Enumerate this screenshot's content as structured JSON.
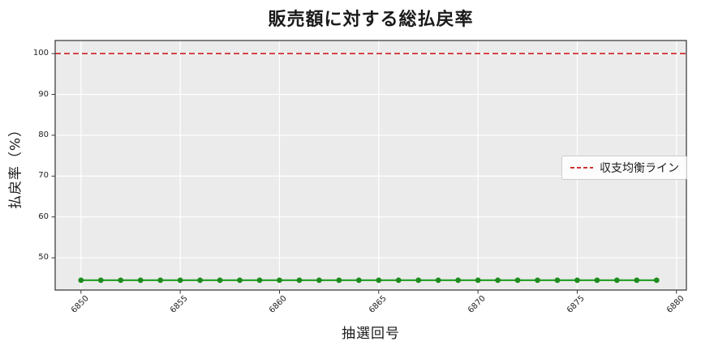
{
  "title": "販売額に対する総払戻率",
  "axes": {
    "xlabel": "抽選回号",
    "ylabel": "払戻率（%）"
  },
  "legend": {
    "items": [
      {
        "label": "収支均衡ライン",
        "color": "#d03030",
        "style": "dashed"
      }
    ]
  },
  "colors": {
    "plot_bg": "#ebebeb",
    "grid": "#ffffff",
    "spine": "#333333",
    "tick": "#333333",
    "series_line": "#2ca02c",
    "series_marker": "#1e8b1e",
    "breakeven": "#d03030"
  },
  "chart_data": {
    "type": "line",
    "title": "販売額に対する総払戻率",
    "xlabel": "抽選回号",
    "ylabel": "払戻率（%）",
    "x": [
      6850,
      6851,
      6852,
      6853,
      6854,
      6855,
      6856,
      6857,
      6858,
      6859,
      6860,
      6861,
      6862,
      6863,
      6864,
      6865,
      6866,
      6867,
      6868,
      6869,
      6870,
      6871,
      6872,
      6873,
      6874,
      6875,
      6876,
      6877,
      6878,
      6879
    ],
    "series": [
      {
        "name": "総払戻率",
        "color": "#2ca02c",
        "marker": "circle",
        "values": [
          44.5,
          44.5,
          44.5,
          44.5,
          44.5,
          44.5,
          44.5,
          44.5,
          44.5,
          44.5,
          44.5,
          44.5,
          44.5,
          44.5,
          44.5,
          44.5,
          44.5,
          44.5,
          44.5,
          44.5,
          44.5,
          44.5,
          44.5,
          44.5,
          44.5,
          44.5,
          44.5,
          44.5,
          44.5,
          44.5
        ]
      }
    ],
    "reference_lines": [
      {
        "name": "収支均衡ライン",
        "y": 100,
        "color": "#d03030",
        "style": "dashed"
      }
    ],
    "xlim": [
      6848.7,
      6880.5
    ],
    "ylim": [
      42.1,
      103.2
    ],
    "xticks": [
      6850,
      6855,
      6860,
      6865,
      6870,
      6875,
      6880
    ],
    "yticks": [
      50,
      60,
      70,
      80,
      90,
      100
    ],
    "grid": true,
    "legend_position": "right"
  }
}
